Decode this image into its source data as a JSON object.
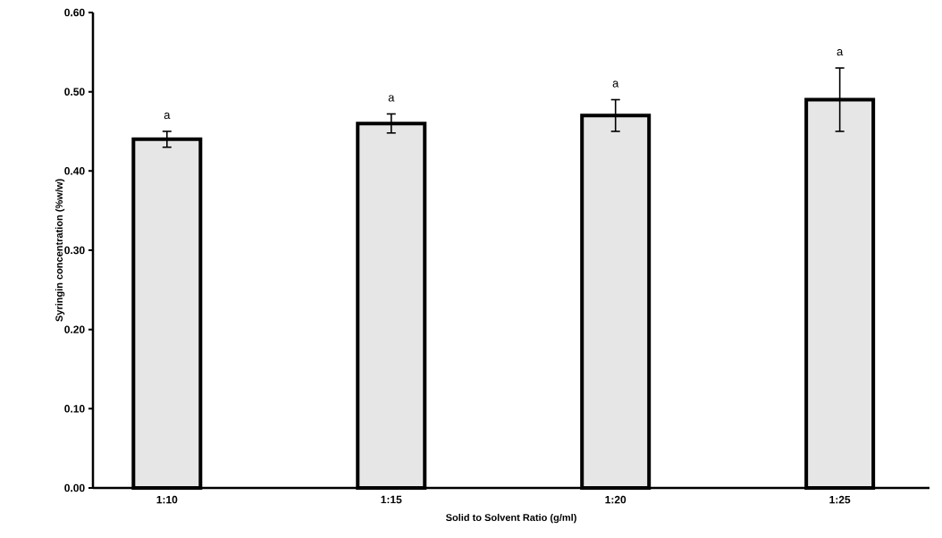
{
  "chart_data": {
    "type": "bar",
    "xlabel": "Solid to Solvent Ratio (g/ml)",
    "ylabel": "Syringin concentration (%w/w)",
    "categories": [
      "1:10",
      "1:15",
      "1:20",
      "1:25"
    ],
    "values": [
      0.44,
      0.46,
      0.47,
      0.49
    ],
    "errors": [
      0.01,
      0.012,
      0.02,
      0.04
    ],
    "color": "#e6e6e6",
    "ylim": [
      0,
      0.6
    ],
    "yticks": [
      {
        "value": 0,
        "label": "0.00"
      },
      {
        "value": 0.1,
        "label": "0.10"
      },
      {
        "value": 0.2,
        "label": "0.20"
      },
      {
        "value": 0.3,
        "label": "0.30"
      },
      {
        "value": 0.4,
        "label": "0.40"
      },
      {
        "value": 0.5,
        "label": "0.50"
      },
      {
        "value": 0.6,
        "label": "0.60"
      }
    ],
    "grid": false,
    "annotations": [
      "a",
      "a",
      "a",
      "a"
    ]
  }
}
